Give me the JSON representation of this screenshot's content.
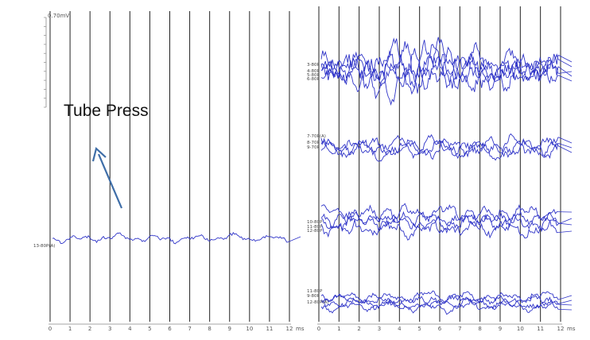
{
  "annotation": {
    "text": "Tube Press",
    "arrow_color": "#3f6ea8"
  },
  "colors": {
    "grid": "#222222",
    "trace": "#2f34c8",
    "axis": "#888888"
  },
  "chart_data": [
    {
      "type": "line",
      "panel": "left",
      "xlim": [
        0,
        12
      ],
      "x_unit": "ms",
      "xticks": [
        "0",
        "1",
        "2",
        "3",
        "4",
        "5",
        "6",
        "7",
        "8",
        "9",
        "10",
        "11",
        "12"
      ],
      "scale_label": "0.70mV",
      "groups": [
        {
          "labels": [
            "13-80P(A)"
          ],
          "trace_count": 1
        }
      ]
    },
    {
      "type": "line",
      "panel": "right",
      "xlim": [
        0,
        12
      ],
      "x_unit": "ms",
      "xticks": [
        "0",
        "1",
        "2",
        "3",
        "4",
        "5",
        "6",
        "7",
        "8",
        "9",
        "10",
        "11",
        "12"
      ],
      "groups": [
        {
          "labels": [
            "3-80P",
            "4-80P",
            "5-80P",
            "6-80P"
          ],
          "trace_count": 5
        },
        {
          "labels": [
            "7-70P(A)",
            "8-70P",
            "9-70P"
          ],
          "trace_count": 3
        },
        {
          "labels": [
            "10-80P",
            "11-80P",
            "12-80P"
          ],
          "trace_count": 4
        },
        {
          "labels": [
            "11-80P",
            "9-80P",
            "12-80P(A)"
          ],
          "trace_count": 4
        }
      ]
    }
  ]
}
